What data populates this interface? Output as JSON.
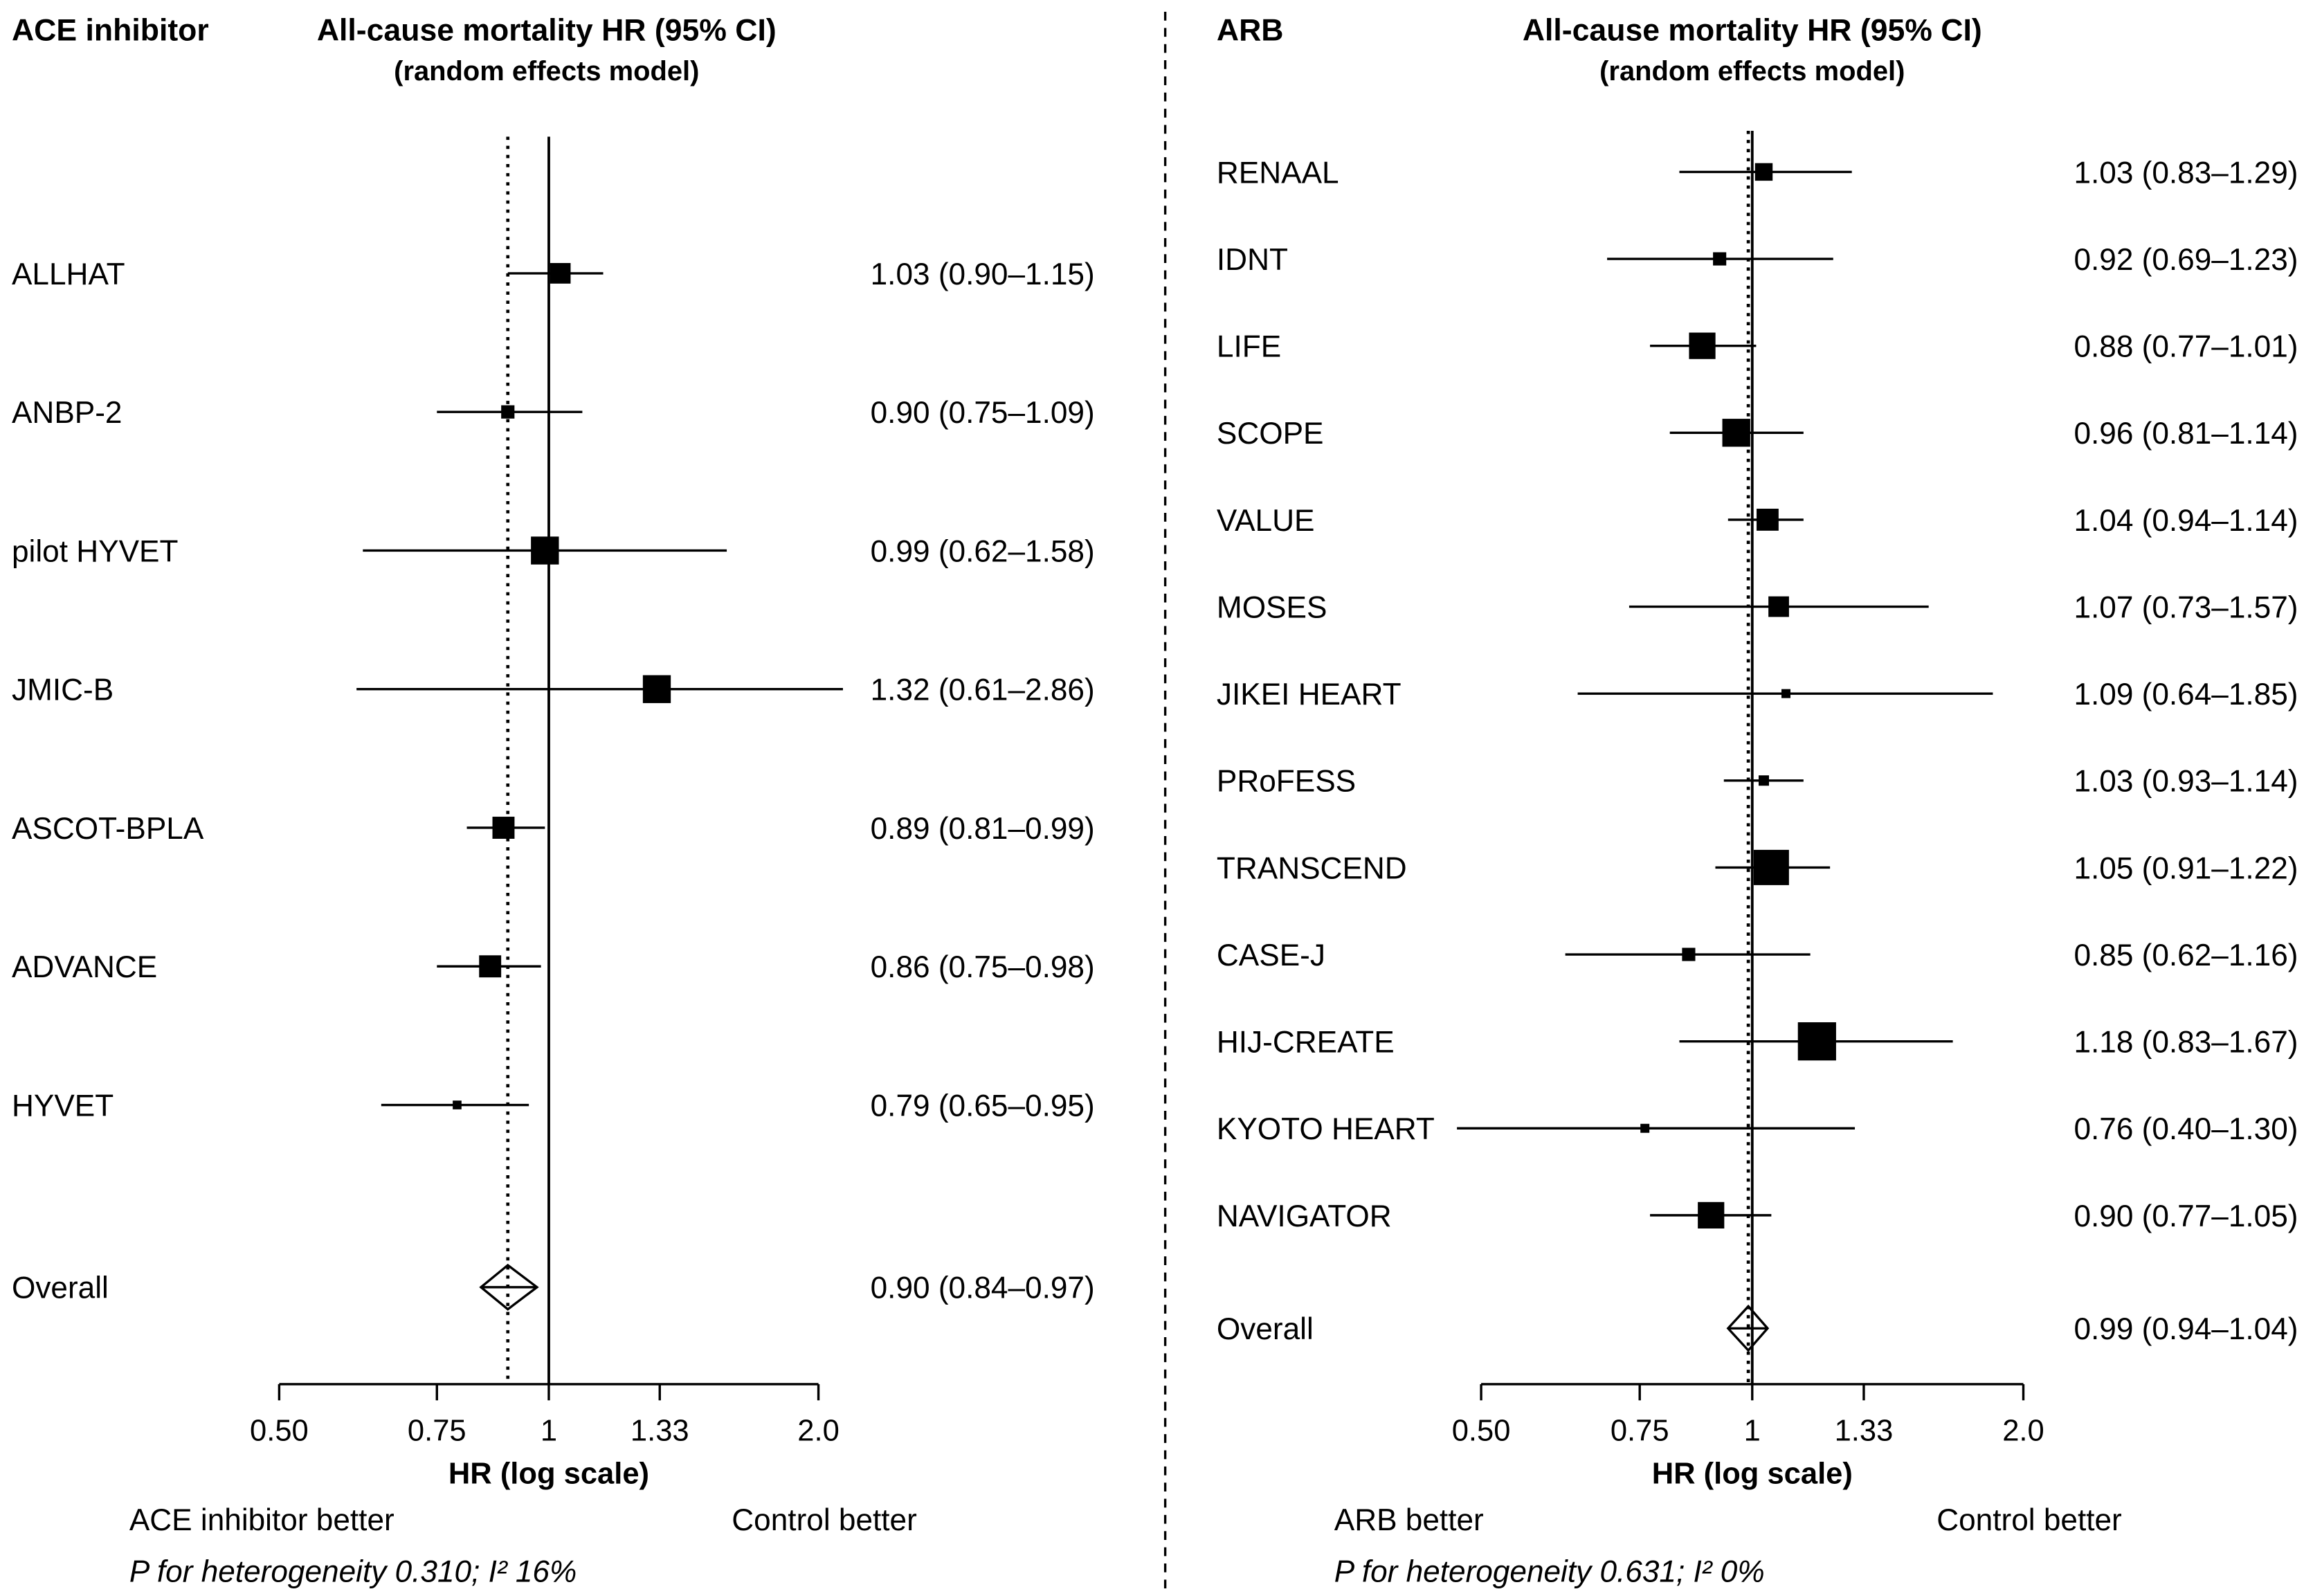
{
  "chart_data": [
    {
      "type": "scatter",
      "x_scale": "log",
      "panel_title": "ACE inhibitor",
      "title": "All-cause mortality HR (95% CI)",
      "subtitle": "(random effects model)",
      "xlabel": "HR (log scale)",
      "xlim": [
        0.5,
        2.0
      ],
      "ticks": [
        0.5,
        0.75,
        1,
        1.33,
        2.0
      ],
      "tick_labels": [
        "0.50",
        "0.75",
        "1",
        "1.33",
        "2.0"
      ],
      "reference_line": 1,
      "grid": false,
      "studies": [
        {
          "label": "ALLHAT",
          "hr": 1.03,
          "lo": 0.9,
          "hi": 1.15,
          "value_label": "1.03 (0.90–1.15)",
          "weight": 13.2
        },
        {
          "label": "ANBP-2",
          "hr": 0.9,
          "lo": 0.75,
          "hi": 1.09,
          "value_label": "0.90 (0.75–1.09)",
          "weight": 5.5
        },
        {
          "label": "pilot HYVET",
          "hr": 0.99,
          "lo": 0.62,
          "hi": 1.58,
          "value_label": "0.99 (0.62–1.58)",
          "weight": 24.3
        },
        {
          "label": "JMIC-B",
          "hr": 1.32,
          "lo": 0.61,
          "hi": 2.86,
          "value_label": "1.32 (0.61–2.86)",
          "weight": 24.3
        },
        {
          "label": "ASCOT-BPLA",
          "hr": 0.89,
          "lo": 0.81,
          "hi": 0.99,
          "value_label": "0.89 (0.81–0.99)",
          "weight": 15.2
        },
        {
          "label": "ADVANCE",
          "hr": 0.86,
          "lo": 0.75,
          "hi": 0.98,
          "value_label": "0.86 (0.75–0.98)",
          "weight": 15.2
        },
        {
          "label": "HYVET",
          "hr": 0.79,
          "lo": 0.65,
          "hi": 0.95,
          "value_label": "0.79 (0.65–0.95)",
          "weight": 2.4
        }
      ],
      "overall": {
        "label": "Overall",
        "hr": 0.9,
        "lo": 0.84,
        "hi": 0.97,
        "value_label": "0.90 (0.84–0.97)"
      },
      "favours_left": "ACE inhibitor better",
      "favours_right": "Control better",
      "heterogeneity": "P for heterogeneity 0.310; I² 16%"
    },
    {
      "type": "scatter",
      "x_scale": "log",
      "panel_title": "ARB",
      "title": "All-cause mortality HR (95% CI)",
      "subtitle": "(random effects model)",
      "xlabel": "HR (log scale)",
      "xlim": [
        0.5,
        2.0
      ],
      "ticks": [
        0.5,
        0.75,
        1,
        1.33,
        2.0
      ],
      "tick_labels": [
        "0.50",
        "0.75",
        "1",
        "1.33",
        "2.0"
      ],
      "reference_line": 1,
      "grid": false,
      "studies": [
        {
          "label": "RENAAL",
          "hr": 1.03,
          "lo": 0.83,
          "hi": 1.29,
          "value_label": "1.03 (0.83–1.29)",
          "weight": 4.6
        },
        {
          "label": "IDNT",
          "hr": 0.92,
          "lo": 0.69,
          "hi": 1.23,
          "value_label": "0.92 (0.69–1.23)",
          "weight": 2.6
        },
        {
          "label": "LIFE",
          "hr": 0.88,
          "lo": 0.77,
          "hi": 1.01,
          "value_label": "0.88 (0.77–1.01)",
          "weight": 10.4
        },
        {
          "label": "SCOPE",
          "hr": 0.96,
          "lo": 0.81,
          "hi": 1.14,
          "value_label": "0.96 (0.81–1.14)",
          "weight": 11.6
        },
        {
          "label": "VALUE",
          "hr": 1.04,
          "lo": 0.94,
          "hi": 1.14,
          "value_label": "1.04 (0.94–1.14)",
          "weight": 7.2
        },
        {
          "label": "MOSES",
          "hr": 1.07,
          "lo": 0.73,
          "hi": 1.57,
          "value_label": "1.07 (0.73–1.57)",
          "weight": 6.3
        },
        {
          "label": "JIKEI HEART",
          "hr": 1.09,
          "lo": 0.64,
          "hi": 1.85,
          "value_label": "1.09 (0.64–1.85)",
          "weight": 1.2
        },
        {
          "label": "PRoFESS",
          "hr": 1.03,
          "lo": 0.93,
          "hi": 1.14,
          "value_label": "1.03 (0.93–1.14)",
          "weight": 1.6
        },
        {
          "label": "TRANSCEND",
          "hr": 1.05,
          "lo": 0.91,
          "hi": 1.22,
          "value_label": "1.05 (0.91–1.22)",
          "weight": 18.5
        },
        {
          "label": "CASE-J",
          "hr": 0.85,
          "lo": 0.62,
          "hi": 1.16,
          "value_label": "0.85 (0.62–1.16)",
          "weight": 2.6
        },
        {
          "label": "HIJ-CREATE",
          "hr": 1.18,
          "lo": 0.83,
          "hi": 1.67,
          "value_label": "1.18 (0.83–1.67)",
          "weight": 21.7
        },
        {
          "label": "KYOTO HEART",
          "hr": 0.76,
          "lo": 0.4,
          "hi": 1.3,
          "value_label": "0.76 (0.40–1.30)",
          "weight": 1.2
        },
        {
          "label": "NAVIGATOR",
          "hr": 0.9,
          "lo": 0.77,
          "hi": 1.05,
          "value_label": "0.90 (0.77–1.05)",
          "weight": 10.4
        }
      ],
      "overall": {
        "label": "Overall",
        "hr": 0.99,
        "lo": 0.94,
        "hi": 1.04,
        "value_label": "0.99 (0.94–1.04)"
      },
      "favours_left": "ARB better",
      "favours_right": "Control better",
      "heterogeneity": "P for heterogeneity 0.631; I² 0%"
    }
  ]
}
